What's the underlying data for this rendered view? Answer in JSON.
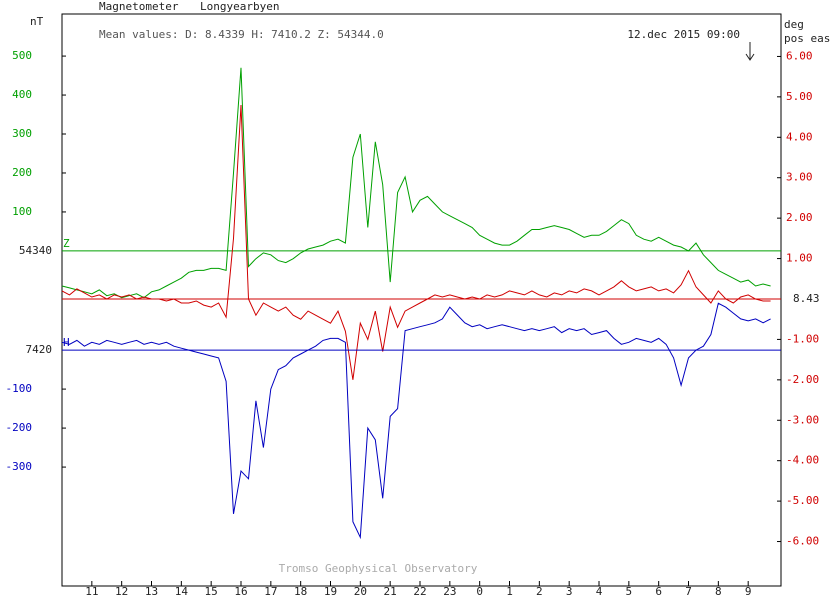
{
  "chart_data": {
    "type": "line",
    "title": "Magnetometer",
    "subtitle": "Longyearbyen",
    "annotation": "Mean values:  D: 8.4339  H: 7410.2  Z: 54344.0",
    "date": "12.dec 2015 09:00",
    "footer": "Tromso Geophysical Observatory",
    "ylabel": "nT",
    "y2label": [
      "deg",
      "pos east"
    ],
    "xlim": [
      10,
      34.1
    ],
    "xticks": [
      11,
      12,
      13,
      14,
      15,
      16,
      17,
      18,
      19,
      20,
      21,
      22,
      23,
      {
        "value": 24,
        "label": "0"
      },
      {
        "value": 25,
        "label": "1"
      },
      {
        "value": 26,
        "label": "2"
      },
      {
        "value": 27,
        "label": "3"
      },
      {
        "value": 28,
        "label": "4"
      },
      {
        "value": 29,
        "label": "5"
      },
      {
        "value": 30,
        "label": "6"
      },
      {
        "value": 31,
        "label": "7"
      },
      {
        "value": 32,
        "label": "8"
      },
      {
        "value": 33,
        "label": "9"
      }
    ],
    "ylim": [
      -860,
      608
    ],
    "yticks": [
      500,
      400,
      300,
      200,
      100
    ],
    "hlim": [
      -605,
      862
    ],
    "hticks": [
      -100,
      -200,
      -300
    ],
    "y2lim": [
      -7.1,
      7.05
    ],
    "y2ticks": [
      {
        "value": 6,
        "label": "6.00"
      },
      {
        "value": 5,
        "label": "5.00"
      },
      {
        "value": 4,
        "label": "4.00"
      },
      {
        "value": 3,
        "label": "3.00"
      },
      {
        "value": 2,
        "label": "2.00"
      },
      {
        "value": 1,
        "label": "1.00"
      },
      {
        "value": -1,
        "label": "-1.00"
      },
      {
        "value": -2,
        "label": "-2.00"
      },
      {
        "value": -3,
        "label": "-3.00"
      },
      {
        "value": -4,
        "label": "-4.00"
      },
      {
        "value": -5,
        "label": "-5.00"
      },
      {
        "value": -6,
        "label": "-6.00"
      }
    ],
    "x": [
      10,
      10.25,
      10.5,
      10.75,
      11,
      11.25,
      11.5,
      11.75,
      12,
      12.25,
      12.5,
      12.75,
      13,
      13.25,
      13.5,
      13.75,
      14,
      14.25,
      14.5,
      14.75,
      15,
      15.25,
      15.5,
      15.75,
      16,
      16.25,
      16.5,
      16.75,
      17,
      17.25,
      17.5,
      17.75,
      18,
      18.25,
      18.5,
      18.75,
      19,
      19.25,
      19.5,
      19.75,
      20,
      20.25,
      20.5,
      20.75,
      21,
      21.25,
      21.5,
      21.75,
      22,
      22.25,
      22.5,
      22.75,
      23,
      23.25,
      23.5,
      23.75,
      24,
      24.25,
      24.5,
      24.75,
      25,
      25.25,
      25.5,
      25.75,
      26,
      26.25,
      26.5,
      26.75,
      27,
      27.25,
      27.5,
      27.75,
      28,
      28.25,
      28.5,
      28.75,
      29,
      29.25,
      29.5,
      29.75,
      30,
      30.25,
      30.5,
      30.75,
      31,
      31.25,
      31.5,
      31.75,
      32,
      32.25,
      32.5,
      32.75,
      33,
      33.25,
      33.5,
      33.75
    ],
    "series": [
      {
        "name": "Z",
        "axis": "y",
        "color": "#00a000",
        "baseline_label": "54340",
        "values": [
          -90,
          -95,
          -100,
          -105,
          -110,
          -100,
          -115,
          -110,
          -120,
          -115,
          -110,
          -120,
          -105,
          -100,
          -90,
          -80,
          -70,
          -55,
          -50,
          -50,
          -45,
          -45,
          -50,
          200,
          470,
          -40,
          -20,
          -5,
          -10,
          -25,
          -30,
          -20,
          -5,
          5,
          10,
          15,
          25,
          30,
          20,
          240,
          300,
          60,
          280,
          170,
          -80,
          150,
          190,
          100,
          130,
          140,
          120,
          100,
          90,
          80,
          70,
          60,
          40,
          30,
          20,
          15,
          15,
          25,
          40,
          55,
          55,
          60,
          65,
          60,
          55,
          45,
          35,
          40,
          40,
          50,
          65,
          80,
          70,
          40,
          30,
          25,
          35,
          25,
          15,
          10,
          0,
          20,
          -10,
          -30,
          -50,
          -60,
          -70,
          -80,
          -75,
          -90,
          -85,
          -90
        ]
      },
      {
        "axis": "y2",
        "color": "#d00000",
        "baseline_label": "8.43",
        "values": [
          0.2,
          0.1,
          0.25,
          0.15,
          0.05,
          0.1,
          0.0,
          0.1,
          0.05,
          0.1,
          0.0,
          0.05,
          0.0,
          0.0,
          -0.05,
          0.0,
          -0.1,
          -0.1,
          -0.05,
          -0.15,
          -0.2,
          -0.1,
          -0.45,
          1.5,
          4.8,
          0.0,
          -0.4,
          -0.1,
          -0.2,
          -0.3,
          -0.2,
          -0.4,
          -0.5,
          -0.3,
          -0.4,
          -0.5,
          -0.6,
          -0.3,
          -0.8,
          -2.0,
          -0.6,
          -1.0,
          -0.3,
          -1.3,
          -0.2,
          -0.7,
          -0.3,
          -0.2,
          -0.1,
          0.0,
          0.1,
          0.05,
          0.1,
          0.05,
          0.0,
          0.05,
          0.0,
          0.1,
          0.05,
          0.1,
          0.2,
          0.15,
          0.1,
          0.2,
          0.1,
          0.05,
          0.15,
          0.1,
          0.2,
          0.15,
          0.25,
          0.2,
          0.1,
          0.2,
          0.3,
          0.45,
          0.3,
          0.2,
          0.25,
          0.3,
          0.2,
          0.25,
          0.15,
          0.35,
          0.7,
          0.3,
          0.1,
          -0.1,
          0.2,
          0.0,
          -0.1,
          0.05,
          0.1,
          0.0,
          -0.05,
          -0.05
        ]
      },
      {
        "name": "H",
        "axis": "h",
        "color": "#0000c0",
        "baseline_label": "7420",
        "values": [
          20,
          15,
          25,
          10,
          20,
          15,
          25,
          20,
          15,
          20,
          25,
          15,
          20,
          15,
          20,
          10,
          5,
          0,
          -5,
          -10,
          -15,
          -20,
          -80,
          -420,
          -310,
          -330,
          -130,
          -250,
          -100,
          -50,
          -40,
          -20,
          -10,
          0,
          10,
          25,
          30,
          30,
          20,
          -440,
          -480,
          -200,
          -230,
          -380,
          -170,
          -150,
          50,
          55,
          60,
          65,
          70,
          80,
          110,
          90,
          70,
          60,
          65,
          55,
          60,
          65,
          60,
          55,
          50,
          55,
          50,
          55,
          60,
          45,
          55,
          50,
          55,
          40,
          45,
          50,
          30,
          15,
          20,
          30,
          25,
          20,
          30,
          15,
          -20,
          -90,
          -20,
          0,
          10,
          40,
          120,
          110,
          95,
          80,
          75,
          80,
          70,
          80
        ]
      }
    ]
  }
}
